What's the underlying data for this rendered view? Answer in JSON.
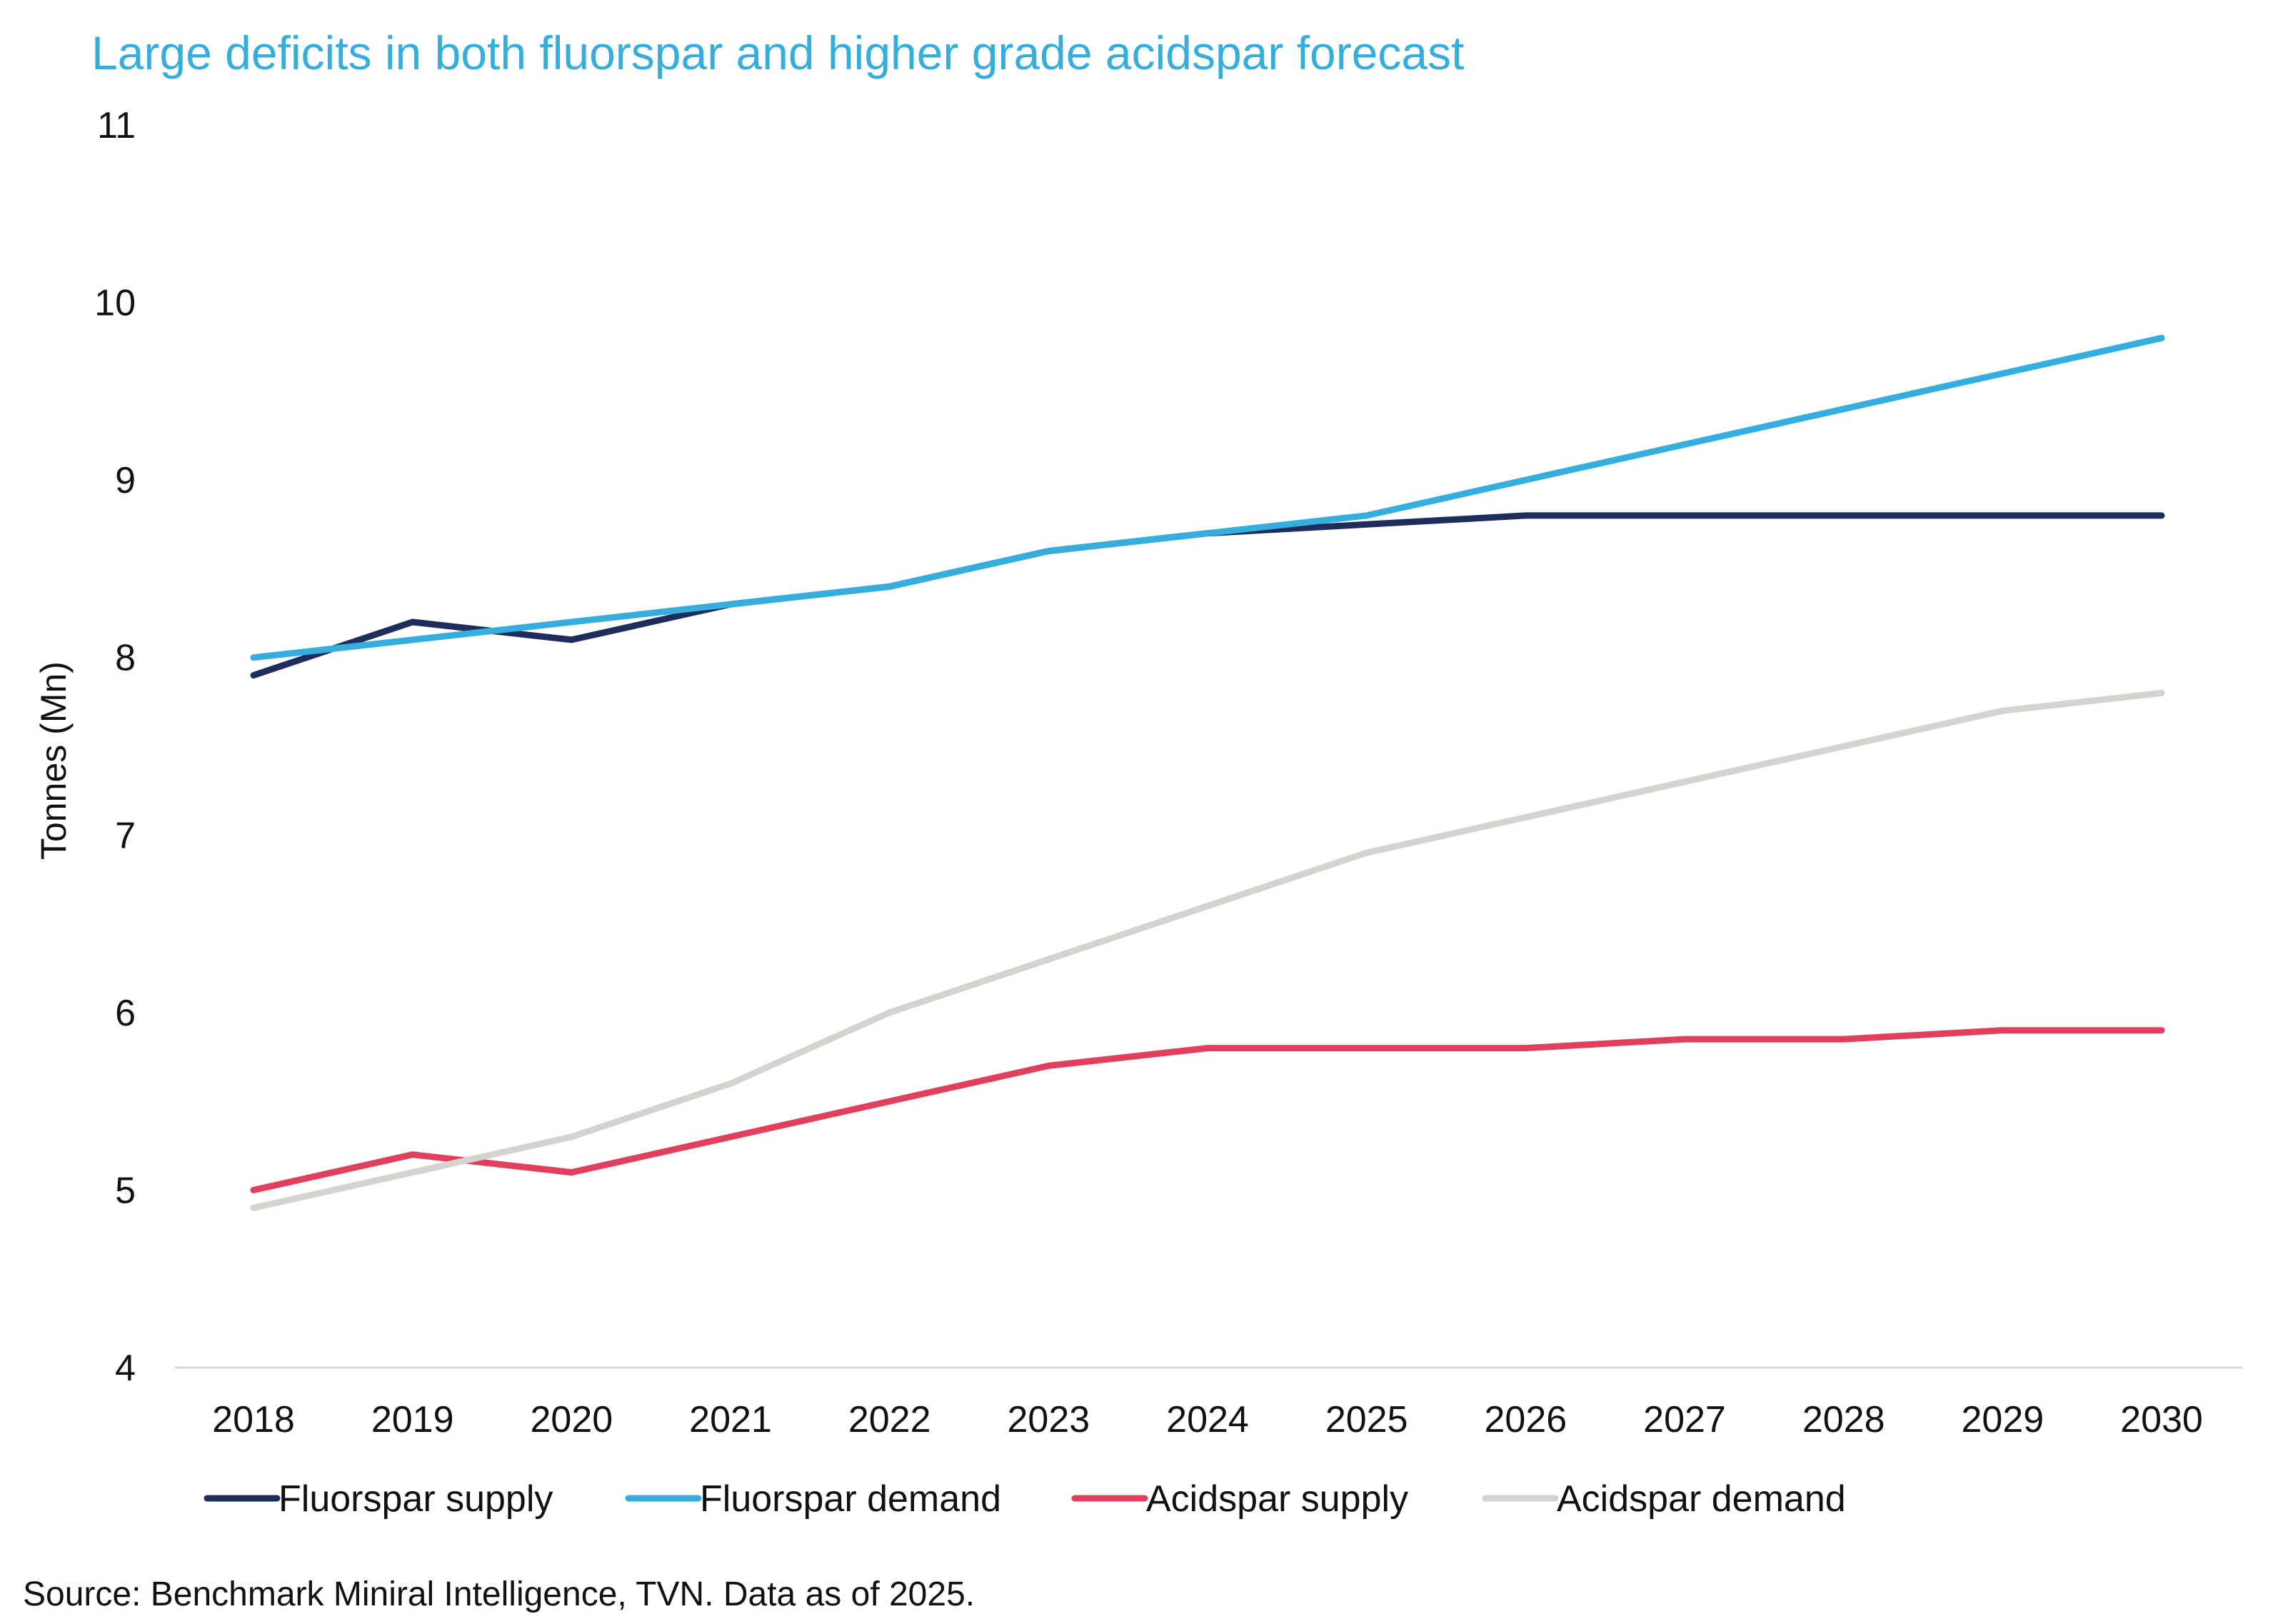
{
  "chart_data": {
    "type": "line",
    "title": "Large deficits in both fluorspar and higher grade acidspar forecast",
    "xlabel": "",
    "ylabel": "Tonnes (Mn)",
    "ylim": [
      4,
      11
    ],
    "yticks": [
      "4",
      "5",
      "6",
      "7",
      "8",
      "9",
      "10",
      "11"
    ],
    "categories": [
      "2018",
      "2019",
      "2020",
      "2021",
      "2022",
      "2023",
      "2024",
      "2025",
      "2026",
      "2027",
      "2028",
      "2029",
      "2030"
    ],
    "series": [
      {
        "name": "Fluorspar supply",
        "color": "#1f2d5c",
        "values": [
          7.9,
          8.2,
          8.1,
          8.3,
          8.4,
          8.6,
          8.7,
          8.75,
          8.8,
          8.8,
          8.8,
          8.8,
          8.8
        ]
      },
      {
        "name": "Fluorspar demand",
        "color": "#36aedd",
        "values": [
          8.0,
          8.1,
          8.2,
          8.3,
          8.4,
          8.6,
          8.7,
          8.8,
          9.0,
          9.2,
          9.4,
          9.6,
          9.8
        ]
      },
      {
        "name": "Acidspar supply",
        "color": "#e0405e",
        "values": [
          5.0,
          5.2,
          5.1,
          5.3,
          5.5,
          5.7,
          5.8,
          5.8,
          5.8,
          5.85,
          5.85,
          5.9,
          5.9
        ]
      },
      {
        "name": "Acidspar demand",
        "color": "#d6d3ce",
        "values": [
          4.9,
          5.1,
          5.3,
          5.6,
          6.0,
          6.3,
          6.6,
          6.9,
          7.1,
          7.3,
          7.5,
          7.7,
          7.8
        ]
      }
    ],
    "grid": false,
    "legend_position": "bottom"
  },
  "source": "Source: Benchmark Miniral Intelligence, TVN. Data as of 2025."
}
